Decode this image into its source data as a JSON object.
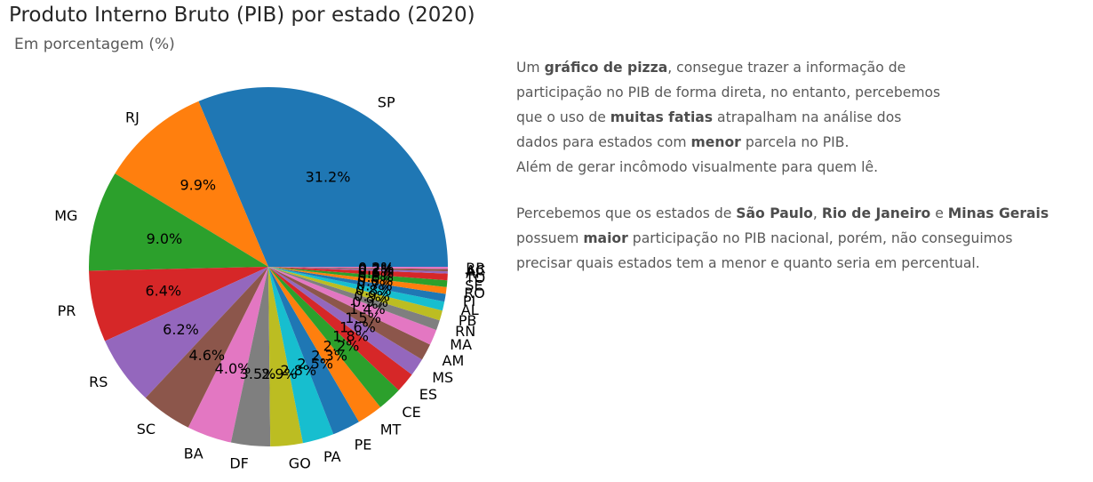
{
  "chart_data": {
    "type": "pie",
    "title": "Produto Interno Bruto (PIB) por estado (2020)",
    "subtitle": "Em porcentagem (%)",
    "categories": [
      "SP",
      "RJ",
      "MG",
      "PR",
      "RS",
      "SC",
      "BA",
      "DF",
      "GO",
      "PA",
      "PE",
      "MT",
      "CE",
      "ES",
      "MS",
      "AM",
      "MA",
      "RN",
      "PB",
      "AL",
      "PI",
      "RO",
      "SE",
      "TO",
      "AP",
      "AC",
      "RR"
    ],
    "values": [
      31.2,
      9.9,
      9.0,
      6.4,
      6.2,
      4.6,
      4.0,
      3.5,
      2.9,
      2.8,
      2.5,
      2.3,
      2.2,
      1.8,
      1.6,
      1.5,
      1.4,
      0.9,
      0.9,
      0.8,
      0.7,
      0.6,
      0.6,
      0.6,
      0.2,
      0.2,
      0.2
    ],
    "value_labels": [
      "31.2%",
      "9.9%",
      "9.0%",
      "6.4%",
      "6.2%",
      "4.6%",
      "4.0%",
      "3.5%",
      "2.9%",
      "2.8%",
      "2.5%",
      "2.3%",
      "2.2%",
      "1.8%",
      "1.6%",
      "1.5%",
      "1.4%",
      "0.9%",
      "0.9%",
      "0.8%",
      "0.7%",
      "0.6%",
      "0.6%",
      "0.6%",
      "0.2%",
      "0.2%",
      "0.2%"
    ],
    "colors": [
      "#1f77b4",
      "#ff7f0e",
      "#2ca02c",
      "#d62728",
      "#9467bd",
      "#8c564b",
      "#e377c2",
      "#7f7f7f",
      "#bcbd22",
      "#17becf"
    ],
    "start_angle": 0,
    "direction": "counterclockwise"
  },
  "annotation": {
    "p1": [
      [
        {
          "t": "Um "
        },
        {
          "t": "gráfico de pizza",
          "b": true
        },
        {
          "t": ", consegue trazer a informação de"
        }
      ],
      [
        {
          "t": "participação no PIB de forma direta, no entanto, percebemos"
        }
      ],
      [
        {
          "t": "que o uso de "
        },
        {
          "t": "muitas fatias",
          "b": true
        },
        {
          "t": " atrapalham na análise dos"
        }
      ],
      [
        {
          "t": "dados para estados com "
        },
        {
          "t": "menor",
          "b": true
        },
        {
          "t": " parcela no PIB."
        }
      ],
      [
        {
          "t": "Além de gerar incômodo visualmente para quem lê."
        }
      ]
    ],
    "p2": [
      [
        {
          "t": "Percebemos que os estados de "
        },
        {
          "t": "São Paulo",
          "b": true
        },
        {
          "t": ", "
        },
        {
          "t": "Rio de Janeiro",
          "b": true
        },
        {
          "t": " e "
        },
        {
          "t": "Minas Gerais",
          "b": true
        }
      ],
      [
        {
          "t": "possuem "
        },
        {
          "t": "maior",
          "b": true
        },
        {
          "t": " participação no PIB nacional, porém, não conseguimos"
        }
      ],
      [
        {
          "t": "precisar quais estados tem a menor e quanto seria em percentual."
        }
      ]
    ]
  }
}
